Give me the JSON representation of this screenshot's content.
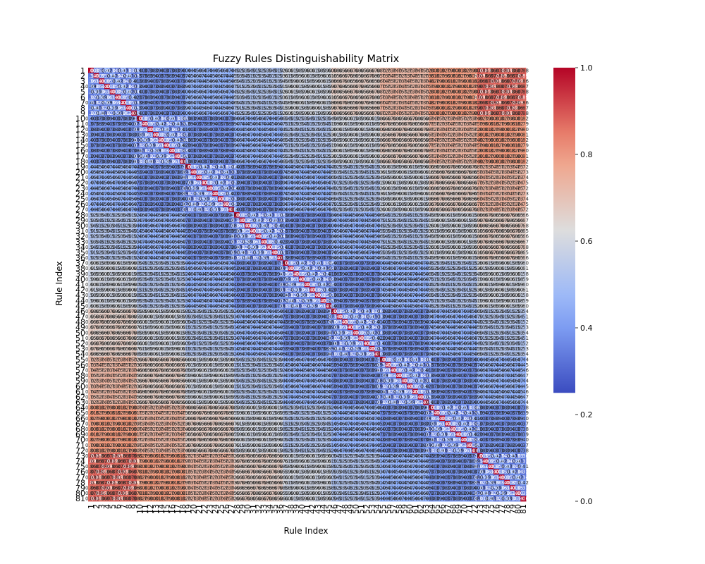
{
  "chart_data": {
    "type": "heatmap",
    "title": "Fuzzy Rules Distinguishability Matrix",
    "xlabel": "Rule Index",
    "ylabel": "Rule Index",
    "n": 81,
    "row_labels_start": 1,
    "annotated": true,
    "annotation_format": "{:.2f}",
    "colormap": "coolwarm",
    "color_range": [
      0.25,
      1.0
    ],
    "colorbar": {
      "ticks": [
        0.0,
        0.2,
        0.4,
        0.6,
        0.8,
        1.0
      ],
      "tick_labels": [
        "0.0",
        "0.2",
        "0.4",
        "0.6",
        "0.8",
        "1.0"
      ],
      "range": [
        0.0,
        1.0
      ],
      "colored_range": [
        0.25,
        1.0
      ]
    },
    "cluster_boundaries": [
      1,
      10,
      19,
      28,
      37,
      46,
      55,
      64,
      73,
      82
    ],
    "values_description_levels": {
      "diagonal": 1.0,
      "within_cluster": 0.32,
      "between_cluster_base": 0.3,
      "between_cluster_step": 0.07
    }
  }
}
